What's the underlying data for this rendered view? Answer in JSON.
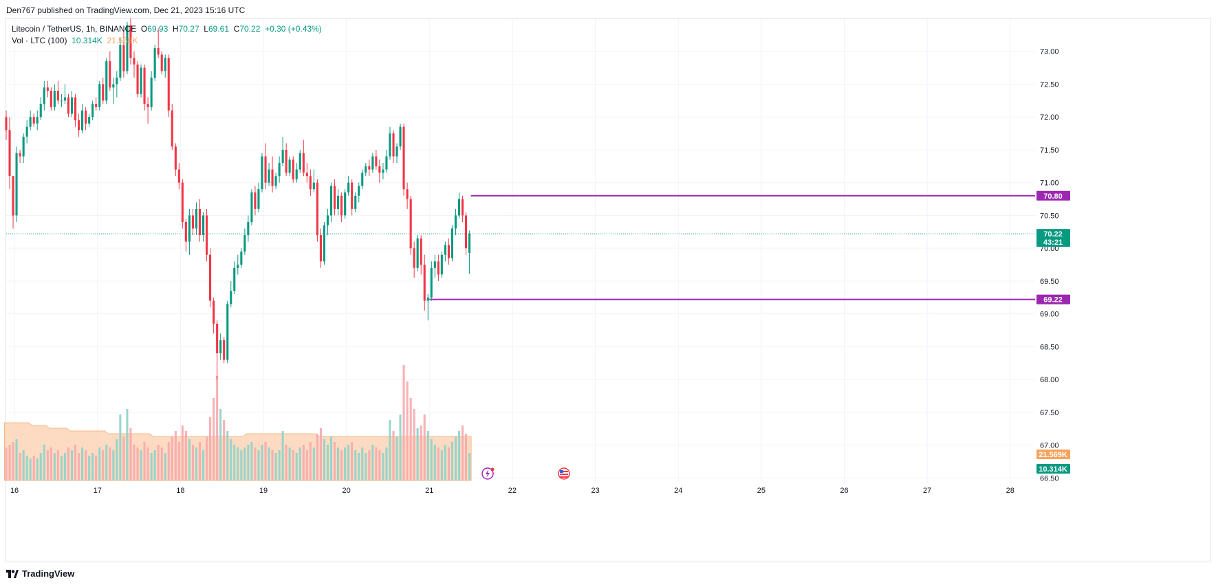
{
  "header": {
    "text": "Den767 published on TradingView.com, Dec 21, 2023 15:16 UTC"
  },
  "legend": {
    "symbol": "Litecoin / TetherUS, 1h, BINANCE",
    "o_label": "O",
    "o": "69.93",
    "h_label": "H",
    "h": "70.27",
    "l_label": "L",
    "l": "69.61",
    "c_label": "C",
    "c": "70.22",
    "change": "+0.30 (+0.43%)",
    "vol_label": "Vol · LTC (100)",
    "vol": "10.314K",
    "vol_ma": "21.569K"
  },
  "footer": {
    "brand": "TradingView"
  },
  "colors": {
    "up": "#089981",
    "down": "#f23645",
    "vol_up": "#8fd3c9",
    "vol_down": "#f7a9ad",
    "vol_ma": "#f7a35c",
    "level": "#9c27b0",
    "last_price": "#089981",
    "grid": "#f0f3fa"
  },
  "icons": {
    "lightning": "lightning-icon",
    "flag": "us-flag-icon",
    "logo": "tradingview-logo-icon"
  },
  "chart_data": {
    "type": "candlestick",
    "xlim": [
      15.9,
      28.3
    ],
    "ylim": [
      66.42,
      73.5
    ],
    "x_ticks": [
      {
        "x": 16,
        "label": "16"
      },
      {
        "x": 17,
        "label": "17"
      },
      {
        "x": 18,
        "label": "18"
      },
      {
        "x": 19,
        "label": "19"
      },
      {
        "x": 20,
        "label": "20"
      },
      {
        "x": 21,
        "label": "21"
      },
      {
        "x": 22,
        "label": "22"
      },
      {
        "x": 23,
        "label": "23"
      },
      {
        "x": 24,
        "label": "24"
      },
      {
        "x": 25,
        "label": "25"
      },
      {
        "x": 26,
        "label": "26"
      },
      {
        "x": 27,
        "label": "27"
      },
      {
        "x": 28,
        "label": "28"
      }
    ],
    "y_ticks": [
      "66.50",
      "67.00",
      "67.50",
      "68.00",
      "68.50",
      "69.00",
      "69.50",
      "70.00",
      "70.50",
      "71.00",
      "71.50",
      "72.00",
      "72.50",
      "73.00"
    ],
    "price_levels": [
      {
        "value": 70.8,
        "label": "70.80",
        "x_start": 21.5
      },
      {
        "value": 69.22,
        "label": "69.22",
        "x_start": 21.0
      }
    ],
    "last_price": {
      "value": 70.22,
      "label": "70.22",
      "countdown": "43:21"
    },
    "volume_ma_label": "21.569K",
    "volume_label": "10.314K",
    "volume_max_k": 42,
    "vol_ma_k": [
      21,
      21,
      21,
      21,
      21,
      21,
      21,
      21,
      20,
      20,
      20,
      20,
      20,
      19,
      19,
      19,
      19,
      19,
      19,
      18,
      18,
      18,
      18,
      18,
      18,
      18,
      18,
      18,
      18,
      18,
      17,
      17,
      17,
      17,
      17,
      17,
      17,
      17,
      17,
      17,
      17,
      17,
      17,
      16,
      16,
      16,
      16,
      16,
      16,
      16,
      16,
      16,
      16,
      16,
      16,
      16,
      16,
      16,
      16,
      16,
      16,
      16,
      16,
      16,
      16,
      16,
      16,
      16,
      16,
      16,
      17,
      17,
      17,
      17,
      17,
      17,
      17,
      17,
      17,
      17,
      17,
      17,
      17,
      17,
      17,
      17,
      17,
      17,
      17,
      17,
      17,
      16,
      16,
      16,
      16,
      16,
      16,
      16,
      16,
      16,
      16,
      16,
      16,
      16,
      16,
      16,
      16,
      16,
      16,
      16,
      16,
      16,
      16,
      16,
      16,
      16,
      16,
      16,
      16,
      16,
      16,
      16,
      16,
      16,
      16,
      16,
      16,
      16,
      16,
      16,
      16,
      16,
      16,
      16,
      16,
      16,
      16,
      16,
      16,
      16,
      16,
      17,
      17,
      17,
      17,
      17,
      17,
      17,
      17,
      18,
      18,
      18,
      19,
      19,
      20,
      20,
      21,
      21,
      21,
      21,
      21,
      21,
      21,
      21,
      21,
      21,
      21,
      21,
      21,
      21,
      21,
      21,
      21,
      21,
      21,
      21,
      21,
      21,
      21
    ],
    "candles": [
      [
        72.0,
        72.1,
        71.65,
        71.8,
        12
      ],
      [
        71.8,
        72.0,
        70.9,
        71.1,
        13
      ],
      [
        71.1,
        71.1,
        70.3,
        70.5,
        14
      ],
      [
        70.5,
        71.55,
        70.4,
        71.45,
        15
      ],
      [
        71.45,
        71.5,
        71.3,
        71.4,
        10
      ],
      [
        71.4,
        71.75,
        71.3,
        71.7,
        11
      ],
      [
        71.7,
        71.95,
        71.6,
        71.85,
        9
      ],
      [
        71.85,
        72.1,
        71.8,
        72.0,
        8
      ],
      [
        72.0,
        72.05,
        71.85,
        71.9,
        9
      ],
      [
        71.9,
        72.1,
        71.8,
        72.0,
        8
      ],
      [
        72.0,
        72.3,
        71.95,
        72.2,
        10
      ],
      [
        72.2,
        72.55,
        72.1,
        72.45,
        13
      ],
      [
        72.45,
        72.55,
        72.3,
        72.4,
        11
      ],
      [
        72.4,
        72.45,
        72.1,
        72.15,
        12
      ],
      [
        72.15,
        72.5,
        72.1,
        72.4,
        10
      ],
      [
        72.4,
        72.55,
        72.2,
        72.25,
        11
      ],
      [
        72.25,
        72.35,
        72.15,
        72.25,
        9
      ],
      [
        72.25,
        72.5,
        72.2,
        72.3,
        10
      ],
      [
        72.3,
        72.35,
        72.0,
        72.05,
        12
      ],
      [
        72.05,
        72.4,
        72.0,
        72.3,
        11
      ],
      [
        72.3,
        72.35,
        71.85,
        71.95,
        13
      ],
      [
        71.95,
        72.05,
        71.7,
        71.8,
        10
      ],
      [
        71.8,
        72.2,
        71.75,
        72.1,
        12
      ],
      [
        72.1,
        72.15,
        71.8,
        71.9,
        11
      ],
      [
        71.9,
        72.05,
        71.85,
        72.0,
        9
      ],
      [
        72.0,
        72.25,
        71.95,
        72.2,
        10
      ],
      [
        72.2,
        72.3,
        72.1,
        72.15,
        9
      ],
      [
        72.15,
        72.55,
        72.1,
        72.5,
        12
      ],
      [
        72.5,
        72.6,
        72.2,
        72.25,
        11
      ],
      [
        72.25,
        72.9,
        72.2,
        72.85,
        13
      ],
      [
        72.85,
        73.0,
        72.4,
        72.45,
        12
      ],
      [
        72.45,
        72.6,
        72.2,
        72.5,
        11
      ],
      [
        72.5,
        72.7,
        72.3,
        72.6,
        15
      ],
      [
        72.6,
        73.2,
        72.55,
        73.1,
        24
      ],
      [
        73.1,
        73.3,
        72.6,
        72.7,
        16
      ],
      [
        72.7,
        73.45,
        72.65,
        73.4,
        26
      ],
      [
        73.4,
        73.5,
        72.8,
        72.9,
        19
      ],
      [
        72.9,
        73.0,
        72.6,
        72.8,
        13
      ],
      [
        72.8,
        72.85,
        72.3,
        72.35,
        12
      ],
      [
        72.35,
        72.8,
        72.3,
        72.75,
        11
      ],
      [
        72.75,
        72.8,
        72.1,
        72.2,
        14
      ],
      [
        72.2,
        72.3,
        71.9,
        72.15,
        12
      ],
      [
        72.15,
        72.7,
        72.1,
        72.6,
        10
      ],
      [
        72.6,
        73.1,
        72.55,
        73.05,
        11
      ],
      [
        73.05,
        73.35,
        72.9,
        72.95,
        13
      ],
      [
        72.95,
        73.0,
        72.65,
        72.7,
        12
      ],
      [
        72.7,
        72.95,
        72.6,
        72.9,
        10
      ],
      [
        72.9,
        72.95,
        72.0,
        72.1,
        14
      ],
      [
        72.1,
        72.2,
        71.5,
        71.55,
        16
      ],
      [
        71.55,
        71.6,
        71.1,
        71.2,
        18
      ],
      [
        71.2,
        71.3,
        70.9,
        71.0,
        14
      ],
      [
        71.0,
        71.05,
        70.3,
        70.4,
        20
      ],
      [
        70.4,
        70.45,
        69.95,
        70.1,
        18
      ],
      [
        70.1,
        70.6,
        69.9,
        70.5,
        15
      ],
      [
        70.5,
        70.6,
        70.2,
        70.3,
        13
      ],
      [
        70.3,
        70.7,
        70.2,
        70.6,
        12
      ],
      [
        70.6,
        70.75,
        70.1,
        70.2,
        14
      ],
      [
        70.2,
        70.55,
        70.1,
        70.5,
        11
      ],
      [
        70.5,
        70.6,
        69.8,
        69.9,
        16
      ],
      [
        69.9,
        70.0,
        69.1,
        69.2,
        23
      ],
      [
        69.2,
        69.25,
        68.7,
        68.85,
        30
      ],
      [
        68.85,
        68.9,
        68.0,
        68.4,
        38
      ],
      [
        68.4,
        68.7,
        68.3,
        68.6,
        26
      ],
      [
        68.6,
        68.65,
        68.25,
        68.3,
        22
      ],
      [
        68.3,
        69.2,
        68.25,
        69.15,
        18
      ],
      [
        69.15,
        69.5,
        69.1,
        69.35,
        15
      ],
      [
        69.35,
        69.8,
        69.3,
        69.7,
        13
      ],
      [
        69.7,
        69.9,
        69.6,
        69.75,
        12
      ],
      [
        69.75,
        70.0,
        69.7,
        69.95,
        11
      ],
      [
        69.95,
        70.3,
        69.9,
        70.2,
        12
      ],
      [
        70.2,
        70.5,
        70.1,
        70.4,
        13
      ],
      [
        70.4,
        70.9,
        70.35,
        70.85,
        14
      ],
      [
        70.85,
        70.95,
        70.5,
        70.6,
        12
      ],
      [
        70.6,
        71.0,
        70.55,
        70.9,
        11
      ],
      [
        70.9,
        71.45,
        70.85,
        71.4,
        13
      ],
      [
        71.4,
        71.6,
        70.9,
        71.0,
        14
      ],
      [
        71.0,
        71.3,
        70.95,
        71.2,
        12
      ],
      [
        71.2,
        71.4,
        70.85,
        70.95,
        11
      ],
      [
        70.95,
        71.15,
        70.9,
        71.1,
        10
      ],
      [
        71.1,
        71.4,
        71.0,
        71.3,
        11
      ],
      [
        71.3,
        71.7,
        71.25,
        71.5,
        18
      ],
      [
        71.5,
        71.6,
        71.1,
        71.15,
        13
      ],
      [
        71.15,
        71.4,
        71.1,
        71.35,
        12
      ],
      [
        71.35,
        71.4,
        71.0,
        71.05,
        11
      ],
      [
        71.05,
        71.3,
        71.0,
        71.2,
        10
      ],
      [
        71.2,
        71.5,
        71.15,
        71.45,
        12
      ],
      [
        71.45,
        71.65,
        71.1,
        71.15,
        13
      ],
      [
        71.15,
        71.3,
        71.0,
        71.1,
        11
      ],
      [
        71.1,
        71.2,
        70.8,
        70.9,
        14
      ],
      [
        70.9,
        71.2,
        70.85,
        71.0,
        12
      ],
      [
        71.0,
        71.05,
        70.1,
        70.2,
        17
      ],
      [
        70.2,
        70.3,
        69.7,
        69.8,
        19
      ],
      [
        69.8,
        70.4,
        69.75,
        70.35,
        15
      ],
      [
        70.35,
        70.6,
        70.2,
        70.5,
        13
      ],
      [
        70.5,
        71.0,
        70.4,
        70.95,
        16
      ],
      [
        70.95,
        71.05,
        70.5,
        70.6,
        14
      ],
      [
        70.6,
        70.9,
        70.5,
        70.8,
        12
      ],
      [
        70.8,
        70.85,
        70.4,
        70.5,
        11
      ],
      [
        70.5,
        70.9,
        70.45,
        70.85,
        12
      ],
      [
        70.85,
        71.1,
        70.8,
        71.0,
        13
      ],
      [
        71.0,
        71.05,
        70.5,
        70.6,
        14
      ],
      [
        70.6,
        70.85,
        70.55,
        70.8,
        11
      ],
      [
        70.8,
        71.0,
        70.7,
        70.95,
        10
      ],
      [
        70.95,
        71.2,
        70.9,
        71.15,
        12
      ],
      [
        71.15,
        71.3,
        71.1,
        71.25,
        10
      ],
      [
        71.25,
        71.35,
        71.1,
        71.2,
        11
      ],
      [
        71.2,
        71.45,
        71.15,
        71.4,
        13
      ],
      [
        71.4,
        71.5,
        71.2,
        71.25,
        12
      ],
      [
        71.25,
        71.35,
        71.0,
        71.15,
        11
      ],
      [
        71.15,
        71.3,
        71.05,
        71.2,
        10
      ],
      [
        71.2,
        71.5,
        71.15,
        71.4,
        12
      ],
      [
        71.4,
        71.85,
        71.35,
        71.75,
        22
      ],
      [
        71.75,
        71.8,
        71.3,
        71.4,
        18
      ],
      [
        71.4,
        71.6,
        71.3,
        71.55,
        16
      ],
      [
        71.55,
        71.9,
        71.5,
        71.85,
        24
      ],
      [
        71.85,
        71.9,
        70.8,
        70.9,
        42
      ],
      [
        70.9,
        71.0,
        70.6,
        70.75,
        36
      ],
      [
        70.75,
        70.8,
        69.9,
        70.0,
        30
      ],
      [
        70.0,
        70.1,
        69.55,
        69.7,
        26
      ],
      [
        69.7,
        70.2,
        69.65,
        70.15,
        19
      ],
      [
        70.15,
        70.2,
        69.6,
        69.75,
        20
      ],
      [
        69.75,
        69.9,
        69.05,
        69.2,
        24
      ],
      [
        69.2,
        69.3,
        68.9,
        69.25,
        18
      ],
      [
        69.25,
        69.8,
        69.2,
        69.7,
        15
      ],
      [
        69.7,
        69.9,
        69.55,
        69.8,
        13
      ],
      [
        69.8,
        69.9,
        69.5,
        69.6,
        12
      ],
      [
        69.6,
        69.95,
        69.55,
        69.9,
        11
      ],
      [
        69.9,
        70.1,
        69.8,
        70.05,
        13
      ],
      [
        70.05,
        70.15,
        69.75,
        69.85,
        12
      ],
      [
        69.85,
        70.35,
        69.8,
        70.3,
        14
      ],
      [
        70.3,
        70.6,
        70.2,
        70.5,
        16
      ],
      [
        70.5,
        70.85,
        70.45,
        70.75,
        18
      ],
      [
        70.75,
        70.8,
        70.4,
        70.5,
        20
      ],
      [
        70.5,
        70.55,
        69.9,
        70.0,
        17
      ],
      [
        69.93,
        70.27,
        69.61,
        70.22,
        10
      ]
    ]
  }
}
